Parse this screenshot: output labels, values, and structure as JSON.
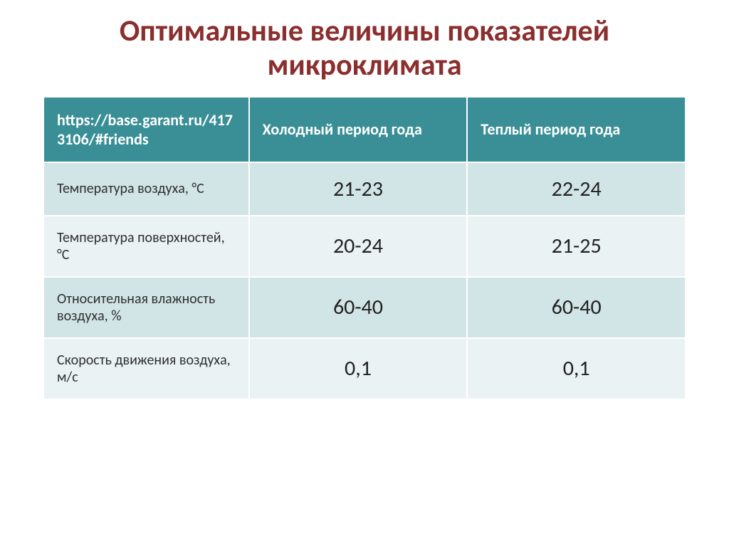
{
  "title": "Оптимальные величины показателей микроклимата",
  "title_color": "#8b2e2e",
  "title_fontsize": 42,
  "table": {
    "header_bg": "#3a8f96",
    "header_fg": "#ffffff",
    "header_fontsize": 22,
    "row_even_bg": "#d1e4e6",
    "row_odd_bg": "#eaf2f3",
    "label_color": "#303030",
    "label_fontsize": 20,
    "value_color": "#222222",
    "value_fontsize": 30,
    "columns": [
      "https://base.garant.ru/4173106/#friends",
      "Холодный период года",
      "Теплый период года"
    ],
    "rows": [
      {
        "label": "Температура воздуха, °С",
        "cold": "21-23",
        "warm": "22-24"
      },
      {
        "label": "Температура поверхностей, °С",
        "cold": "20-24",
        "warm": "21-25"
      },
      {
        "label": "Относительная влажность воздуха, %",
        "cold": "60-40",
        "warm": "60-40"
      },
      {
        "label": "Скорость движения воздуха, м/с",
        "cold": "0,1",
        "warm": "0,1"
      }
    ]
  }
}
